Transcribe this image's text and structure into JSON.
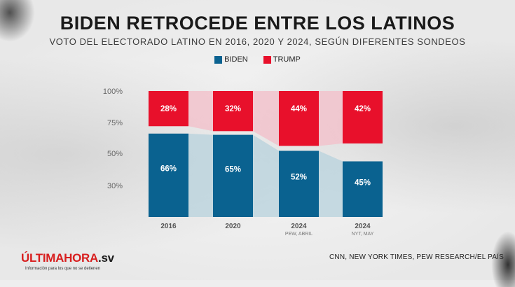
{
  "header": {
    "title": "BIDEN RETROCEDE ENTRE LOS LATINOS",
    "subtitle": "VOTO DEL ELECTORADO LATINO EN 2016, 2020 Y 2024, SEGÚN DIFERENTES SONDEOS"
  },
  "footer": {
    "logo_part1": "ÚLTIMA",
    "logo_part2": "HORA",
    "logo_part3": ".sv",
    "tagline": "Información para los que no se detienen",
    "source": "CNN, NEW YORK TIMES, PEW RESEARCH/EL PAÍS"
  },
  "colors": {
    "biden": "#0a6290",
    "trump": "#e8102b",
    "biden_trend": "#b7d1dc",
    "trump_trend": "#f2c1cb"
  },
  "chart_data": {
    "type": "bar",
    "categories": [
      "2016",
      "2020",
      "2024",
      "2024"
    ],
    "category_sublabels": [
      "",
      "",
      "PEW, ABRIL",
      "NYT, MAY"
    ],
    "series": [
      {
        "name": "BIDEN",
        "values": [
          66,
          65,
          52,
          45
        ],
        "labels": [
          "66%",
          "65%",
          "52%",
          "45%"
        ]
      },
      {
        "name": "TRUMP",
        "values": [
          28,
          32,
          44,
          42
        ],
        "labels": [
          "28%",
          "32%",
          "44%",
          "42%"
        ]
      }
    ],
    "yticks": [
      "100%",
      "75%",
      "50%",
      "30%"
    ],
    "ytick_values": [
      100,
      75,
      50,
      30
    ],
    "ylim": [
      0,
      100
    ],
    "legend": "top-center",
    "grid": false
  }
}
